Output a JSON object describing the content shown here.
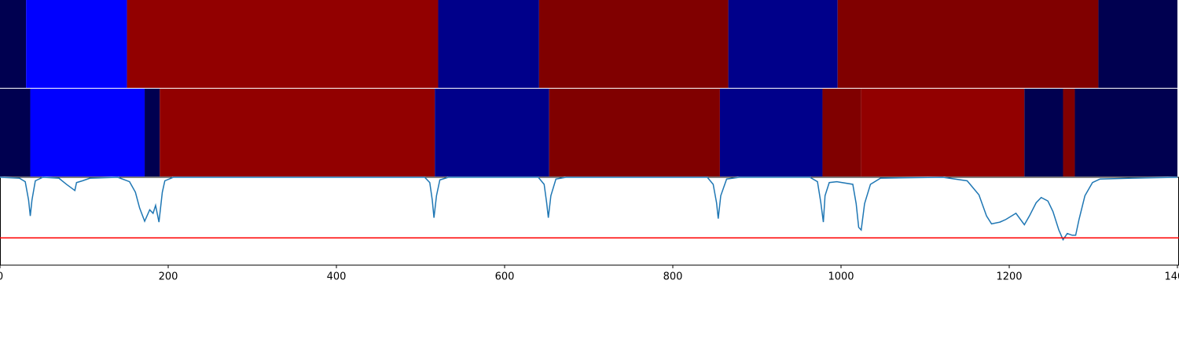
{
  "chart_data": [
    {
      "type": "segments",
      "starts": [
        0,
        31,
        151,
        521,
        641,
        866,
        996,
        1306
      ],
      "ends": [
        31,
        151,
        521,
        641,
        866,
        996,
        1306,
        1400
      ],
      "colors": [
        "#000050",
        "#0000ff",
        "#920000",
        "#00008a",
        "#800000",
        "#00008a",
        "#800000",
        "#000050"
      ]
    },
    {
      "type": "segments",
      "starts": [
        0,
        36,
        172,
        190,
        517,
        653,
        856,
        978,
        1024,
        1218,
        1264,
        1278
      ],
      "ends": [
        36,
        172,
        190,
        517,
        653,
        856,
        978,
        1024,
        1218,
        1264,
        1278,
        1400
      ],
      "colors": [
        "#000050",
        "#0000ff",
        "#000050",
        "#920000",
        "#00008a",
        "#800000",
        "#00008a",
        "#800000",
        "#920000",
        "#000050",
        "#800000",
        "#000050"
      ]
    },
    {
      "type": "line",
      "color": "#1f77b4",
      "threshold": 0.31,
      "threshold_color": "#ff0000",
      "xlim": [
        0,
        1400
      ],
      "ylim": [
        0,
        1
      ],
      "xticks": [
        0,
        200,
        400,
        600,
        800,
        1000,
        1200,
        1400
      ],
      "x": [
        0,
        23,
        30,
        34,
        36,
        38,
        42,
        51,
        70,
        79,
        89,
        91,
        98,
        107,
        140,
        154,
        161,
        166,
        172,
        178,
        182,
        185,
        189,
        193,
        196,
        206,
        505,
        511,
        514,
        516,
        519,
        523,
        533,
        640,
        647,
        650,
        652,
        655,
        661,
        673,
        841,
        848,
        852,
        854,
        857,
        864,
        879,
        963,
        972,
        976,
        979,
        981,
        986,
        995,
        1014,
        1018,
        1021,
        1024,
        1028,
        1035,
        1047,
        1121,
        1150,
        1164,
        1173,
        1179,
        1189,
        1196,
        1208,
        1218,
        1224,
        1232,
        1238,
        1246,
        1252,
        1259,
        1264,
        1269,
        1275,
        1279,
        1283,
        1290,
        1299,
        1308,
        1346,
        1400
      ],
      "values": [
        1.0,
        0.99,
        0.95,
        0.74,
        0.56,
        0.74,
        0.96,
        1.0,
        0.99,
        0.92,
        0.85,
        0.94,
        0.96,
        0.99,
        1.0,
        0.95,
        0.83,
        0.65,
        0.5,
        0.63,
        0.59,
        0.68,
        0.49,
        0.83,
        0.96,
        1.0,
        1.0,
        0.94,
        0.74,
        0.54,
        0.79,
        0.97,
        1.0,
        1.0,
        0.92,
        0.71,
        0.54,
        0.79,
        0.98,
        1.0,
        1.0,
        0.92,
        0.71,
        0.53,
        0.79,
        0.98,
        1.0,
        1.0,
        0.95,
        0.71,
        0.49,
        0.79,
        0.94,
        0.95,
        0.92,
        0.7,
        0.43,
        0.4,
        0.7,
        0.92,
        0.99,
        1.0,
        0.96,
        0.8,
        0.56,
        0.47,
        0.49,
        0.52,
        0.59,
        0.46,
        0.56,
        0.71,
        0.77,
        0.73,
        0.61,
        0.4,
        0.29,
        0.36,
        0.34,
        0.34,
        0.52,
        0.79,
        0.94,
        0.98,
        0.99,
        1.0
      ]
    }
  ]
}
